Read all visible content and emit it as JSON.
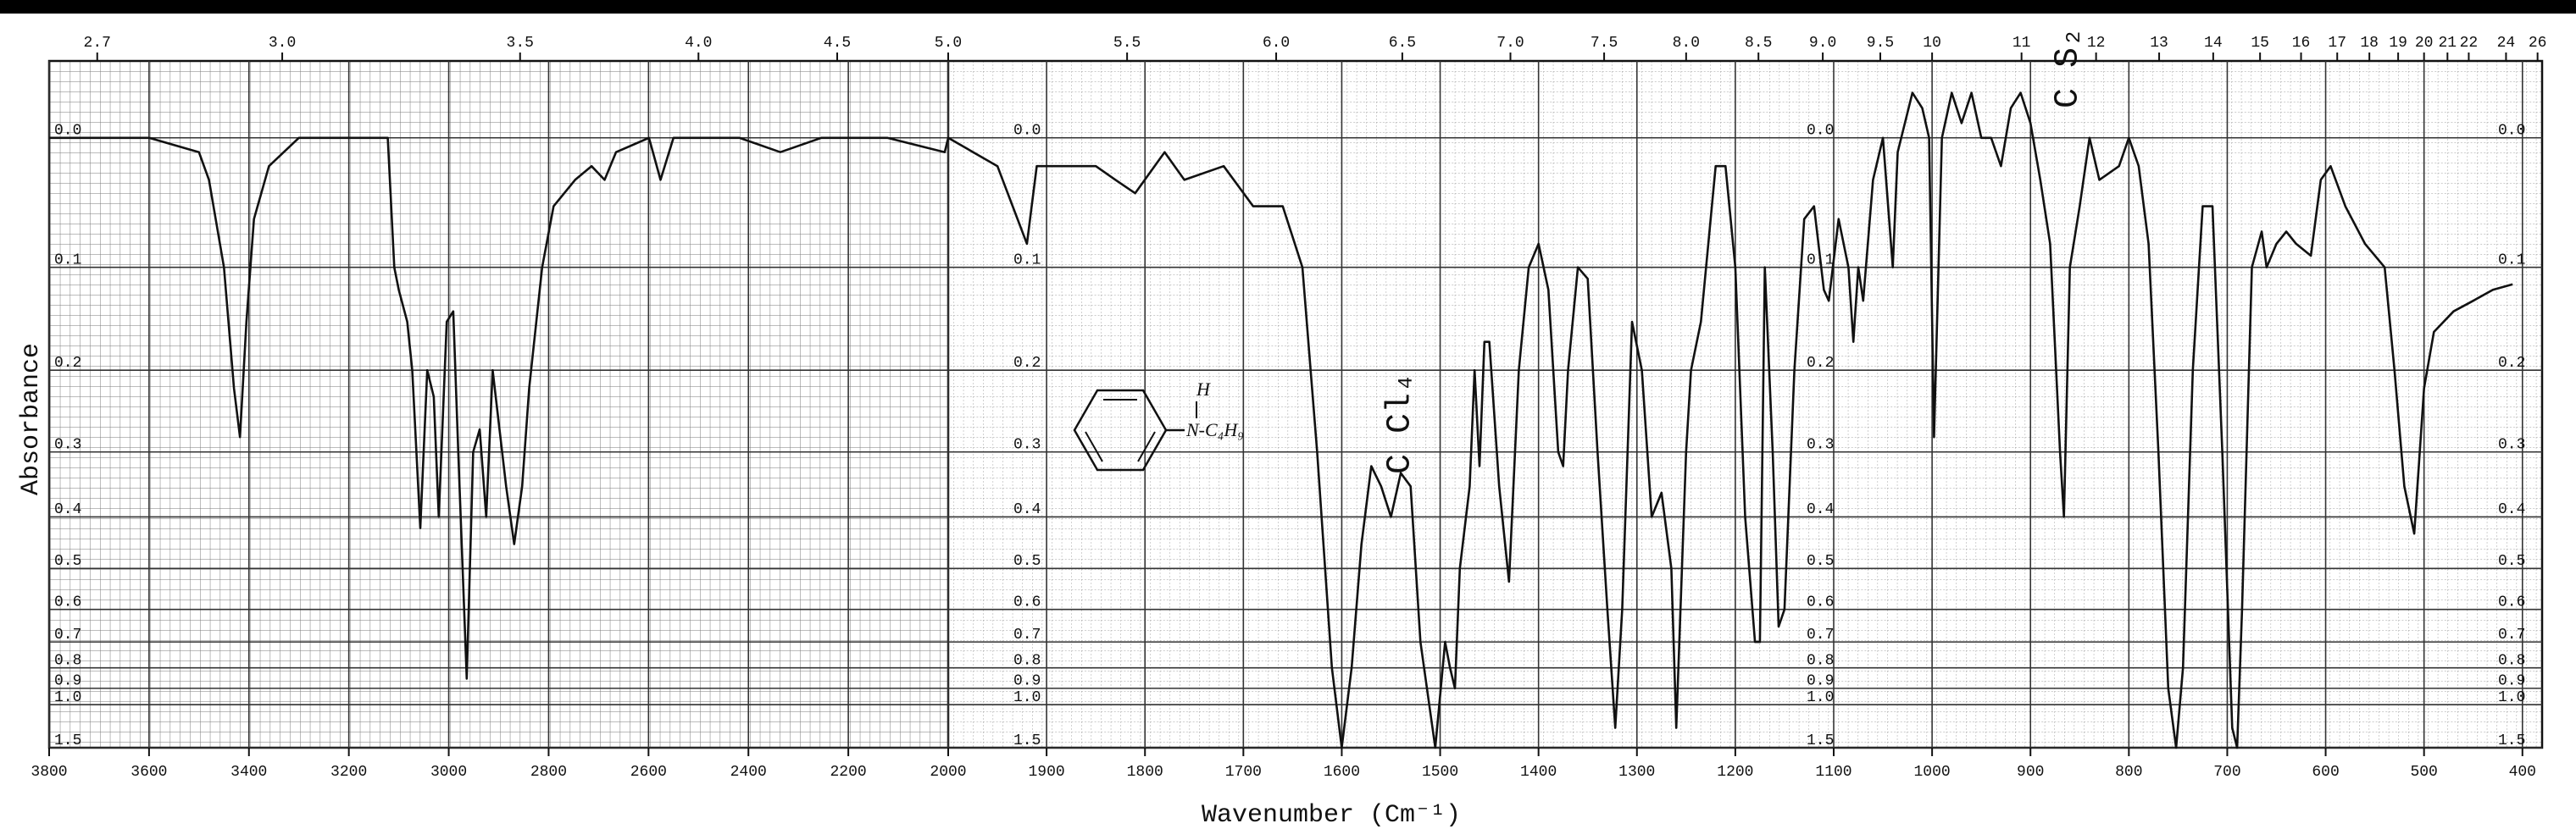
{
  "chart_data": {
    "type": "line",
    "xlabel": "Wavenumber (Cm⁻¹)",
    "ylabel": "Absorbance",
    "color": "#111111",
    "grid": true,
    "yscale": "transmittance-linear",
    "xlim": [
      3800,
      380
    ],
    "x_scale_break": 2000,
    "xticks": [
      3800,
      3600,
      3400,
      3200,
      3000,
      2800,
      2600,
      2400,
      2200,
      2000,
      1900,
      1800,
      1700,
      1600,
      1500,
      1400,
      1300,
      1200,
      1100,
      1000,
      900,
      800,
      700,
      600,
      500,
      400
    ],
    "x2ticks": [
      2.7,
      {
        "value": 3,
        "label": "3.0"
      },
      3.5,
      {
        "value": 4,
        "label": "4.0"
      },
      4.5,
      {
        "value": 5,
        "label": "5.0"
      },
      5.5,
      {
        "value": 6,
        "label": "6.0"
      },
      6.5,
      {
        "value": 7,
        "label": "7.0"
      },
      7.5,
      {
        "value": 8,
        "label": "8.0"
      },
      8.5,
      {
        "value": 9,
        "label": "9.0"
      },
      9.5,
      10,
      11,
      12,
      13,
      14,
      15,
      16,
      17,
      18,
      19,
      20,
      21,
      22,
      24,
      26
    ],
    "ylim": [
      -0.05,
      1.5
    ],
    "yticks": [
      {
        "value": 0,
        "label": "0.0"
      },
      0.1,
      0.2,
      0.3,
      0.4,
      0.5,
      0.6,
      0.7,
      0.8,
      0.9,
      {
        "value": 1,
        "label": "1.0"
      },
      1.5
    ],
    "annotations": [
      {
        "text": "C Cl₄"
      },
      {
        "text": "C S₂"
      },
      {
        "text": "H"
      },
      {
        "text": "N-C₄H₉"
      }
    ],
    "x": [
      3800,
      3700,
      3600,
      3500,
      3480,
      3450,
      3430,
      3418,
      3405,
      3390,
      3360,
      3300,
      3200,
      3122,
      3109,
      3100,
      3083,
      3073,
      3057,
      3043,
      3030,
      3020,
      3004,
      2991,
      2981,
      2964,
      2951,
      2938,
      2925,
      2912,
      2902,
      2885,
      2869,
      2853,
      2839,
      2813,
      2790,
      2747,
      2714,
      2688,
      2665,
      2599,
      2576,
      2550,
      2418,
      2336,
      2254,
      2122,
      2007,
      2000,
      1950,
      1920,
      1910,
      1850,
      1830,
      1810,
      1780,
      1760,
      1720,
      1690,
      1660,
      1640,
      1625,
      1610,
      1600,
      1590,
      1580,
      1570,
      1560,
      1550,
      1540,
      1530,
      1520,
      1505,
      1495,
      1490,
      1485,
      1480,
      1470,
      1465,
      1460,
      1455,
      1450,
      1440,
      1430,
      1420,
      1410,
      1400,
      1390,
      1380,
      1375,
      1370,
      1360,
      1350,
      1340,
      1330,
      1322,
      1315,
      1305,
      1295,
      1285,
      1275,
      1265,
      1260,
      1250,
      1245,
      1235,
      1220,
      1210,
      1200,
      1190,
      1180,
      1175,
      1170,
      1162,
      1156,
      1150,
      1140,
      1130,
      1120,
      1110,
      1105,
      1095,
      1085,
      1080,
      1075,
      1070,
      1060,
      1050,
      1040,
      1035,
      1020,
      1010,
      1003,
      998,
      990,
      980,
      970,
      960,
      950,
      940,
      930,
      920,
      910,
      900,
      890,
      880,
      870,
      866,
      860,
      850,
      840,
      830,
      810,
      800,
      790,
      780,
      770,
      760,
      752,
      745,
      735,
      725,
      715,
      705,
      695,
      690,
      685,
      675,
      665,
      660,
      650,
      640,
      630,
      615,
      605,
      595,
      580,
      560,
      540,
      530,
      520,
      510,
      500,
      490,
      470,
      450,
      430,
      410
    ],
    "values": [
      0,
      0,
      0,
      0.01,
      0.03,
      0.1,
      0.22,
      0.28,
      0.15,
      0.06,
      0.02,
      0,
      0,
      0,
      0.1,
      0.12,
      0.15,
      0.2,
      0.42,
      0.2,
      0.23,
      0.4,
      0.15,
      0.14,
      0.3,
      0.85,
      0.3,
      0.27,
      0.4,
      0.2,
      0.25,
      0.35,
      0.45,
      0.35,
      0.22,
      0.1,
      0.05,
      0.03,
      0.02,
      0.03,
      0.01,
      0,
      0.03,
      0,
      0,
      0.01,
      0,
      0,
      0.01,
      0,
      0.02,
      0.08,
      0.02,
      0.02,
      0.03,
      0.04,
      0.01,
      0.03,
      0.02,
      0.05,
      0.05,
      0.1,
      0.3,
      0.8,
      1.5,
      0.8,
      0.45,
      0.32,
      0.35,
      0.4,
      0.33,
      0.35,
      0.7,
      1.5,
      0.7,
      0.8,
      0.9,
      0.5,
      0.35,
      0.2,
      0.32,
      0.17,
      0.17,
      0.35,
      0.53,
      0.2,
      0.1,
      0.08,
      0.12,
      0.3,
      0.32,
      0.2,
      0.1,
      0.11,
      0.3,
      0.6,
      1.2,
      0.6,
      0.15,
      0.2,
      0.4,
      0.36,
      0.5,
      1.2,
      0.3,
      0.2,
      0.15,
      0.02,
      0.02,
      0.1,
      0.4,
      0.7,
      0.7,
      0.1,
      0.3,
      0.65,
      0.6,
      0.2,
      0.06,
      0.05,
      0.12,
      0.13,
      0.06,
      0.1,
      0.17,
      0.1,
      0.13,
      0.03,
      0,
      0.1,
      0.01,
      -0.03,
      -0.02,
      0,
      0.28,
      0,
      -0.03,
      -0.01,
      -0.03,
      0,
      0,
      0.02,
      -0.02,
      -0.03,
      -0.01,
      0.03,
      0.08,
      0.3,
      0.4,
      0.1,
      0.05,
      0,
      0.03,
      0.02,
      0,
      0.02,
      0.08,
      0.3,
      0.9,
      1.5,
      0.8,
      0.2,
      0.05,
      0.05,
      0.3,
      1.2,
      1.5,
      0.6,
      0.1,
      0.07,
      0.1,
      0.08,
      0.07,
      0.08,
      0.09,
      0.03,
      0.02,
      0.05,
      0.08,
      0.1,
      0.2,
      0.35,
      0.43,
      0.22,
      0.16,
      0.14,
      0.13,
      0.12,
      0.115
    ]
  }
}
